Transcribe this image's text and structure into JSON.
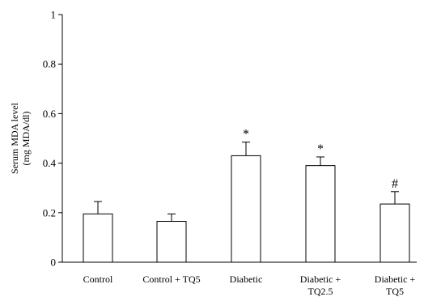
{
  "chart_data": {
    "type": "bar",
    "title": "",
    "xlabel": "",
    "ylabel_lines": [
      "Serum MDA level",
      "(mg MDA/dl)"
    ],
    "ylim": [
      0,
      1
    ],
    "yticks": [
      0,
      0.2,
      0.4,
      0.6,
      0.8,
      1
    ],
    "ytick_labels": [
      "0",
      "0.2",
      "0.4",
      "0.6",
      "0.8",
      "1"
    ],
    "categories": [
      [
        "Control"
      ],
      [
        "Control + TQ5"
      ],
      [
        "Diabetic"
      ],
      [
        "Diabetic +",
        "TQ2.5"
      ],
      [
        "Diabetic +",
        "TQ5"
      ]
    ],
    "values": [
      0.195,
      0.165,
      0.43,
      0.39,
      0.235
    ],
    "error_upper": [
      0.05,
      0.03,
      0.055,
      0.035,
      0.05
    ],
    "annotations": [
      "",
      "",
      "*",
      "*",
      "#"
    ],
    "bar_fill": "#ffffff",
    "bar_stroke": "#000000",
    "grid": false,
    "legend": "none"
  }
}
